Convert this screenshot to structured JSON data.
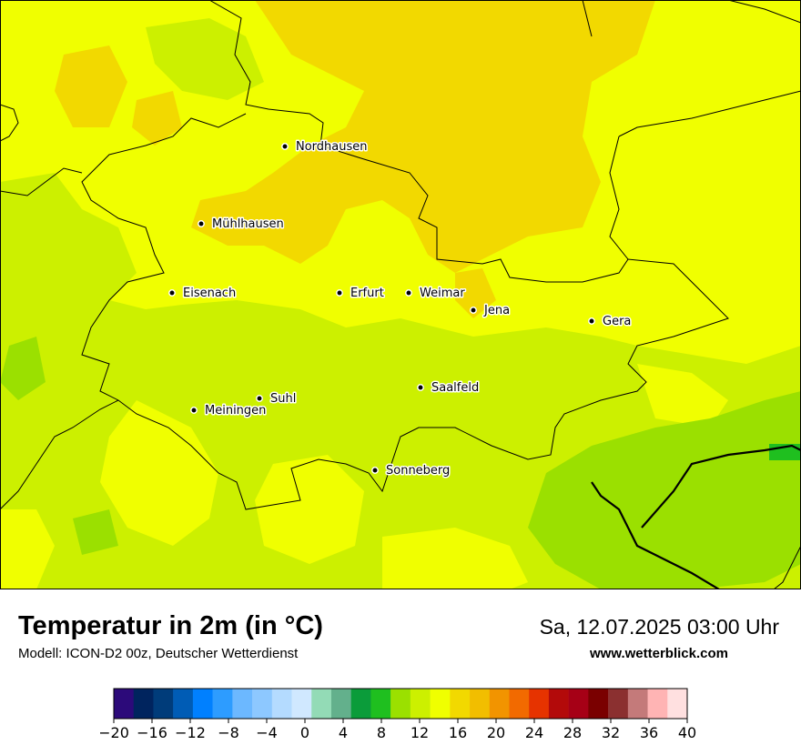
{
  "title": "Temperatur in 2m (in °C)",
  "subtitle": "Modell: ICON-D2 00z, Deutscher Wetterdienst",
  "datetime": "Sa, 12.07.2025 03:00 Uhr",
  "url": "www.wetterblick.com",
  "cities": [
    {
      "id": "nordhausen",
      "name": "Nordhausen"
    },
    {
      "id": "muehlhausen",
      "name": "Mühlhausen"
    },
    {
      "id": "eisenach",
      "name": "Eisenach"
    },
    {
      "id": "erfurt",
      "name": "Erfurt"
    },
    {
      "id": "weimar",
      "name": "Weimar"
    },
    {
      "id": "jena",
      "name": "Jena"
    },
    {
      "id": "gera",
      "name": "Gera"
    },
    {
      "id": "suhl",
      "name": "Suhl"
    },
    {
      "id": "meiningen",
      "name": "Meiningen"
    },
    {
      "id": "saalfeld",
      "name": "Saalfeld"
    },
    {
      "id": "sonneberg",
      "name": "Sonneberg"
    }
  ],
  "legend": {
    "min": -20,
    "max": 40,
    "tick_labels": [
      "−20",
      "−16",
      "−12",
      "−8",
      "−4",
      "0",
      "4",
      "8",
      "12",
      "16",
      "20",
      "24",
      "28",
      "32",
      "36",
      "40"
    ],
    "colors": [
      "#2c0a7a",
      "#00245e",
      "#003c7a",
      "#005cb5",
      "#0080ff",
      "#2d9cff",
      "#6cb8ff",
      "#8dc8ff",
      "#b4dbff",
      "#d0e8ff",
      "#93dbb6",
      "#63b08c",
      "#0b9c3a",
      "#1fbf1f",
      "#9be000",
      "#ccf000",
      "#f0ff00",
      "#f2d900",
      "#f2be00",
      "#f29400",
      "#f26a00",
      "#e63300",
      "#b30a0a",
      "#a60016",
      "#7a0000",
      "#8b3030",
      "#c47a7a",
      "#ffb4b4",
      "#ffe0e0"
    ]
  },
  "map_colors": {
    "cool_green": "#9be000",
    "lime": "#ccf000",
    "yellow": "#f0ff00",
    "gold": "#f2d900"
  }
}
